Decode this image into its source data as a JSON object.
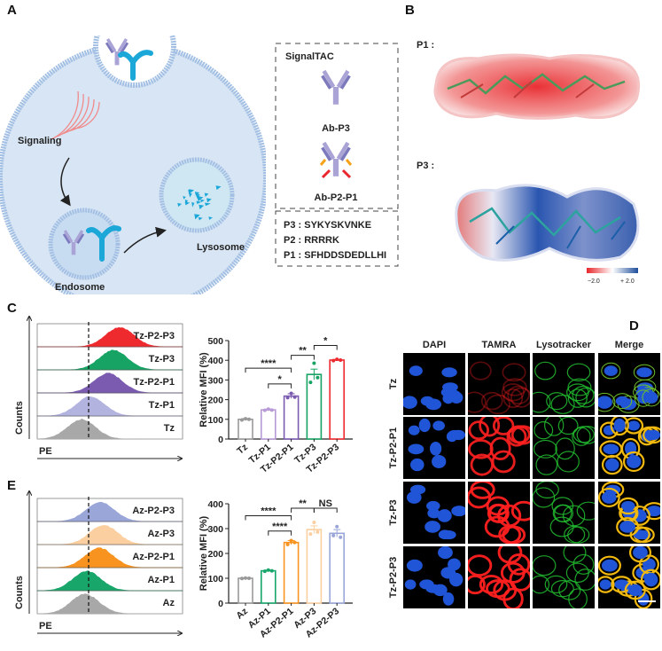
{
  "panels": {
    "a": "A",
    "b": "B",
    "c": "C",
    "d": "D",
    "e": "E"
  },
  "panel_a": {
    "signaling": "Signaling",
    "endosome": "Endosome",
    "lysosome": "Lysosome",
    "box_title": "SignalTAC",
    "ab1": "Ab-P3",
    "ab2": "Ab-P2-P1",
    "sequences": [
      "P3 : SYKYSKVNKE",
      "P2 : RRRRK",
      "P1 : SFHDDSDEDLLHI"
    ]
  },
  "panel_b": {
    "p1": "P1 :",
    "p3": "P3 :",
    "scale_min": "−2.0",
    "scale_max": "+ 2.0",
    "colors": {
      "negative": "#e8262b",
      "neutral": "#ffffff",
      "positive": "#1f4e9c"
    }
  },
  "panel_d": {
    "columns": [
      "DAPI",
      "TAMRA",
      "Lysotracker",
      "Merge"
    ],
    "rows": [
      "Tz",
      "Tz-P2-P1",
      "Tz-P3",
      "Tz-P2-P3"
    ]
  },
  "chart_data": [
    {
      "id": "c-hist",
      "type": "histogram",
      "xlabel": "PE",
      "ylabel": "Counts",
      "series": [
        {
          "name": "Tz-P2-P3",
          "color": "#ee2a2f"
        },
        {
          "name": "Tz-P3",
          "color": "#17a363"
        },
        {
          "name": "Tz-P2-P1",
          "color": "#7b5bb0"
        },
        {
          "name": "Tz-P1",
          "color": "#b3b3e0"
        },
        {
          "name": "Tz",
          "color": "#a8a8a8"
        }
      ]
    },
    {
      "id": "c-bar",
      "type": "bar",
      "ylabel": "Relative MFI (%)",
      "ylim": [
        0,
        500
      ],
      "yticks": [
        0,
        100,
        200,
        300,
        400,
        500
      ],
      "categories": [
        "Tz",
        "Tz-P1",
        "Tz-P2-P1",
        "Tz-P3",
        "Tz-P2-P3"
      ],
      "values": [
        100,
        148,
        218,
        328,
        401
      ],
      "errors": [
        4,
        4,
        12,
        27,
        3
      ],
      "points": [
        [
          97,
          103,
          100
        ],
        [
          146,
          152,
          147
        ],
        [
          210,
          232,
          213
        ],
        [
          288,
          385,
          312
        ],
        [
          398,
          405,
          401
        ]
      ],
      "colors": [
        "#999999",
        "#b89ad6",
        "#7b5bb0",
        "#17a363",
        "#ee2a2f"
      ],
      "significance": [
        {
          "from": 0,
          "to": 2,
          "label": "****",
          "level": 360
        },
        {
          "from": 1,
          "to": 2,
          "label": "*",
          "level": 280
        },
        {
          "from": 2,
          "to": 3,
          "label": "**",
          "level": 425
        },
        {
          "from": 3,
          "to": 4,
          "label": "*",
          "level": 475
        }
      ]
    },
    {
      "id": "e-hist",
      "type": "histogram",
      "xlabel": "PE",
      "ylabel": "Counts",
      "series": [
        {
          "name": "Az-P2-P3",
          "color": "#9aa6d8"
        },
        {
          "name": "Az-P3",
          "color": "#fbcf9f"
        },
        {
          "name": "Az-P2-P1",
          "color": "#f7931e"
        },
        {
          "name": "Az-P1",
          "color": "#19a66a"
        },
        {
          "name": "Az",
          "color": "#a8a8a8"
        }
      ]
    },
    {
      "id": "e-bar",
      "type": "bar",
      "ylabel": "Relative MFI (%)",
      "ylim": [
        0,
        400
      ],
      "yticks": [
        0,
        100,
        200,
        300,
        400
      ],
      "categories": [
        "Az",
        "Az-P1",
        "Az-P2-P1",
        "Az-P3",
        "Az-P2-P3"
      ],
      "values": [
        100,
        130,
        244,
        296,
        281
      ],
      "errors": [
        2,
        3,
        8,
        15,
        15
      ],
      "points": [
        [
          99,
          101,
          100
        ],
        [
          128,
          133,
          130
        ],
        [
          236,
          252,
          244
        ],
        [
          278,
          325,
          286
        ],
        [
          272,
          308,
          265
        ]
      ],
      "colors": [
        "#999999",
        "#19a66a",
        "#f7931e",
        "#fbcf9f",
        "#9aa6d8"
      ],
      "significance": [
        {
          "from": 0,
          "to": 2,
          "label": "****",
          "level": 352
        },
        {
          "from": 1,
          "to": 2,
          "label": "****",
          "level": 290
        },
        {
          "from": 2,
          "to": 3,
          "label": "**",
          "level": 382
        },
        {
          "from": 3,
          "to": 4,
          "label": "NS",
          "level": 382
        }
      ]
    }
  ]
}
